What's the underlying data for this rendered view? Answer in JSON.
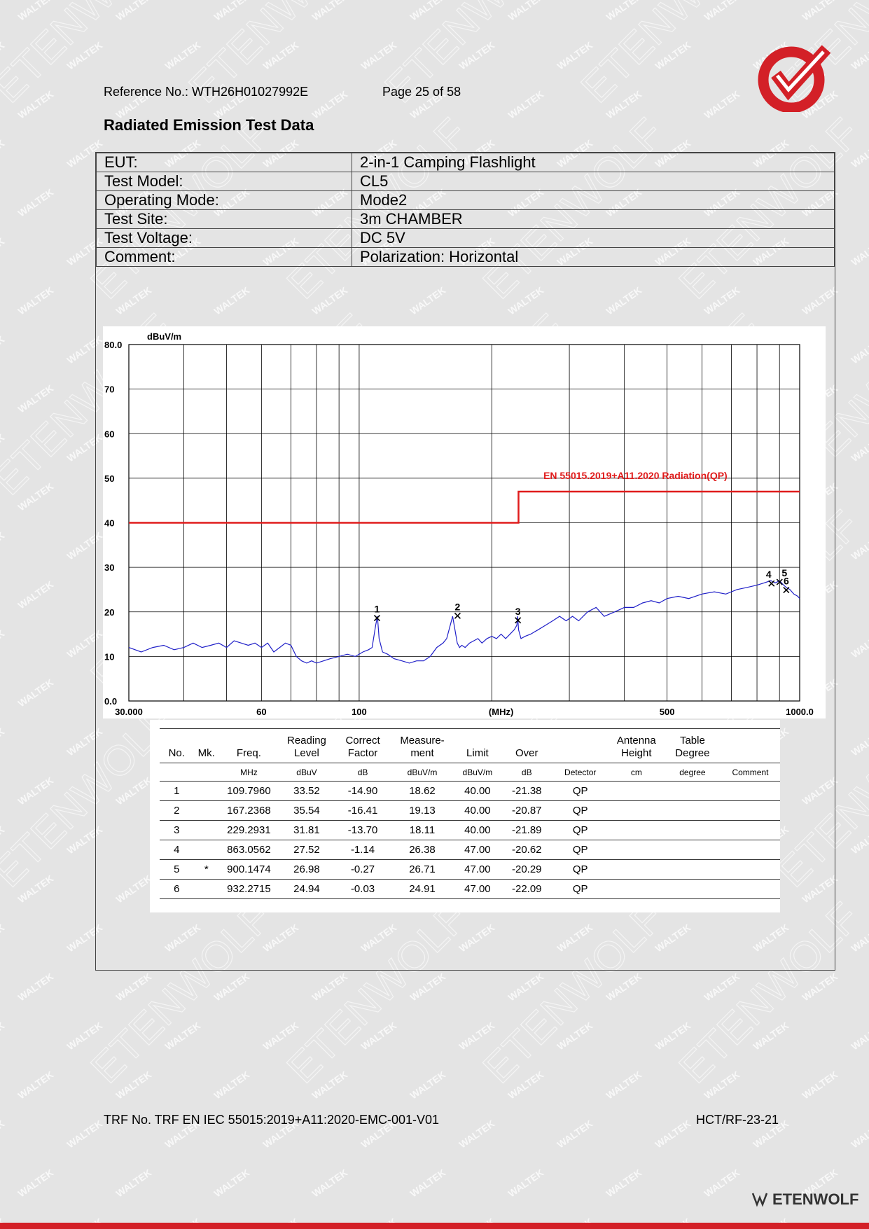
{
  "header": {
    "reference": "Reference No.: WTH26H01027992E",
    "page": "Page 25 of 58",
    "title": "Radiated Emission Test Data"
  },
  "info": [
    {
      "key": "EUT:",
      "value": "2-in-1 Camping Flashlight"
    },
    {
      "key": "Test Model:",
      "value": "CL5"
    },
    {
      "key": "Operating Mode:",
      "value": "Mode2"
    },
    {
      "key": "Test Site:",
      "value": "3m CHAMBER"
    },
    {
      "key": "Test Voltage:",
      "value": "DC 5V"
    },
    {
      "key": "Comment:",
      "value": "Polarization: Horizontal"
    }
  ],
  "chart_data": {
    "type": "line",
    "x_scale": "log",
    "xlim": [
      30,
      1000
    ],
    "ylim": [
      0,
      80
    ],
    "ylabel": "dBuV/m",
    "xlabel": "(MHz)",
    "y_ticks": [
      "80.0",
      "70",
      "60",
      "50",
      "40",
      "30",
      "20",
      "10",
      "0.0"
    ],
    "x_tick_labels": [
      {
        "value": 30,
        "label": "30.000"
      },
      {
        "value": 60,
        "label": "60"
      },
      {
        "value": 100,
        "label": "100"
      },
      {
        "value": 500,
        "label": "500"
      },
      {
        "value": 1000,
        "label": "1000.0"
      }
    ],
    "grid": true,
    "limit_line": {
      "name": "EN 55015.2019+A11.2020 Radiation(QP)",
      "color": "#e01c1c",
      "segments": [
        {
          "x0": 30,
          "x1": 230,
          "y": 40
        },
        {
          "x0": 230,
          "x1": 1000,
          "y": 47
        }
      ]
    },
    "series": [
      {
        "color": "#1f1fc8",
        "x": [
          30,
          32,
          34,
          36,
          38,
          40,
          42,
          44,
          46,
          48,
          50,
          52,
          54,
          56,
          58,
          60,
          62,
          64,
          66,
          68,
          70,
          72,
          74,
          76,
          78,
          80,
          83,
          86,
          90,
          94,
          98,
          102,
          105,
          107,
          109,
          110,
          111,
          113,
          116,
          120,
          125,
          130,
          135,
          140,
          145,
          150,
          155,
          158,
          161,
          163,
          165,
          167,
          169,
          171,
          174,
          178,
          182,
          186,
          190,
          195,
          200,
          205,
          210,
          215,
          220,
          225,
          228,
          229,
          230,
          233,
          238,
          245,
          255,
          265,
          275,
          285,
          295,
          305,
          315,
          330,
          345,
          360,
          380,
          400,
          420,
          440,
          460,
          480,
          500,
          530,
          560,
          600,
          640,
          680,
          720,
          760,
          800,
          830,
          860,
          880,
          900,
          920,
          932,
          950,
          970,
          990,
          1000
        ],
        "y": [
          12,
          11,
          12,
          12.5,
          11.5,
          12,
          13,
          12,
          12.5,
          13,
          12,
          13.5,
          13,
          12.5,
          13,
          12,
          13,
          11,
          12,
          13,
          12.5,
          10,
          9,
          8.5,
          9,
          8.5,
          9,
          9.5,
          10,
          10.5,
          10,
          11,
          11.5,
          12,
          17,
          19,
          14,
          11,
          10.5,
          9.5,
          9,
          8.5,
          9,
          9,
          10,
          12,
          13,
          14,
          17,
          19,
          16,
          13,
          12,
          12.5,
          12,
          13,
          13.5,
          14,
          13,
          14,
          14.5,
          14,
          15,
          14,
          15,
          16,
          17,
          19,
          16,
          14,
          14.5,
          15,
          16,
          17,
          18,
          19,
          18,
          19,
          18,
          20,
          21,
          19,
          20,
          21,
          21,
          22,
          22.5,
          22,
          23,
          23.5,
          23,
          24,
          24.5,
          24,
          25,
          25.5,
          26,
          26.5,
          27,
          26.5,
          27,
          26,
          25.5,
          25,
          24,
          23.5,
          23
        ]
      }
    ],
    "markers": [
      {
        "label": "1",
        "x": 109.796,
        "y": 18.62
      },
      {
        "label": "2",
        "x": 167.2368,
        "y": 19.13
      },
      {
        "label": "3",
        "x": 229.2931,
        "y": 18.11
      },
      {
        "label": "4",
        "x": 863.0562,
        "y": 26.38
      },
      {
        "label": "5",
        "x": 900.1474,
        "y": 26.71
      },
      {
        "label": "6",
        "x": 932.2715,
        "y": 24.91
      }
    ]
  },
  "measurements": {
    "headers": [
      "No.",
      "Mk.",
      "Freq.",
      "Reading Level",
      "Correct Factor",
      "Measure-ment",
      "Limit",
      "Over",
      "",
      "Antenna Height",
      "Table Degree",
      ""
    ],
    "units": [
      "",
      "",
      "MHz",
      "dBuV",
      "dB",
      "dBuV/m",
      "dBuV/m",
      "dB",
      "Detector",
      "cm",
      "degree",
      "Comment"
    ],
    "rows": [
      [
        "1",
        "",
        "109.7960",
        "33.52",
        "-14.90",
        "18.62",
        "40.00",
        "-21.38",
        "QP",
        "",
        "",
        ""
      ],
      [
        "2",
        "",
        "167.2368",
        "35.54",
        "-16.41",
        "19.13",
        "40.00",
        "-20.87",
        "QP",
        "",
        "",
        ""
      ],
      [
        "3",
        "",
        "229.2931",
        "31.81",
        "-13.70",
        "18.11",
        "40.00",
        "-21.89",
        "QP",
        "",
        "",
        ""
      ],
      [
        "4",
        "",
        "863.0562",
        "27.52",
        "-1.14",
        "26.38",
        "47.00",
        "-20.62",
        "QP",
        "",
        "",
        ""
      ],
      [
        "5",
        "*",
        "900.1474",
        "26.98",
        "-0.27",
        "26.71",
        "47.00",
        "-20.29",
        "QP",
        "",
        "",
        ""
      ],
      [
        "6",
        "",
        "932.2715",
        "24.94",
        "-0.03",
        "24.91",
        "47.00",
        "-22.09",
        "QP",
        "",
        "",
        ""
      ]
    ]
  },
  "footer": {
    "trf": "TRF No. TRF EN IEC 55015:2019+A11:2020-EMC-001-V01",
    "form": "HCT/RF-23-21",
    "brand": "ETENWOLF"
  },
  "watermark": {
    "words": [
      "WALTEK",
      "ETENWOLF"
    ]
  },
  "colors": {
    "accent": "#d32027",
    "limit": "#e01c1c",
    "trace": "#1f1fc8"
  }
}
